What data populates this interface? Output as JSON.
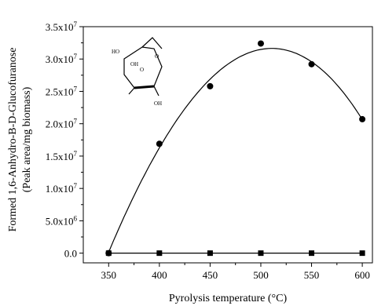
{
  "chart_data": {
    "type": "scatter",
    "xlabel": "Pyrolysis temperature (°C)",
    "ylabel_line1": "Formed 1,6-Anhydro-B-D-Glucofuranose",
    "ylabel_line2": "(Peak area/mg biomass)",
    "xlim": [
      325,
      610
    ],
    "ylim": [
      -1500000,
      35000000
    ],
    "x_ticks": [
      350,
      400,
      450,
      500,
      550,
      600
    ],
    "y_ticks": [
      {
        "value": 0,
        "mantissa": "0.0",
        "exp": ""
      },
      {
        "value": 5000000,
        "mantissa": "5.0x10",
        "exp": "6"
      },
      {
        "value": 10000000,
        "mantissa": "1.0x10",
        "exp": "7"
      },
      {
        "value": 15000000,
        "mantissa": "1.5x10",
        "exp": "7"
      },
      {
        "value": 20000000,
        "mantissa": "2.0x10",
        "exp": "7"
      },
      {
        "value": 25000000,
        "mantissa": "2.5x10",
        "exp": "7"
      },
      {
        "value": 30000000,
        "mantissa": "3.0x10",
        "exp": "7"
      },
      {
        "value": 35000000,
        "mantissa": "3.5x10",
        "exp": "7"
      }
    ],
    "series": [
      {
        "marker": "circle",
        "x": [
          350,
          400,
          450,
          500,
          550,
          600
        ],
        "y": [
          0,
          16900000,
          25800000,
          32400000,
          29200000,
          20700000
        ],
        "fit": "polynomial"
      },
      {
        "marker": "square",
        "x": [
          350,
          400,
          450,
          500,
          550,
          600
        ],
        "y": [
          0,
          0,
          0,
          0,
          0,
          0
        ],
        "fit": "line"
      }
    ],
    "inset": {
      "type": "molecule-structure",
      "labels": [
        "HO",
        "OH",
        "O",
        "O",
        "OH"
      ]
    },
    "colors": {
      "axis": "#000000",
      "marker": "#000000"
    }
  }
}
